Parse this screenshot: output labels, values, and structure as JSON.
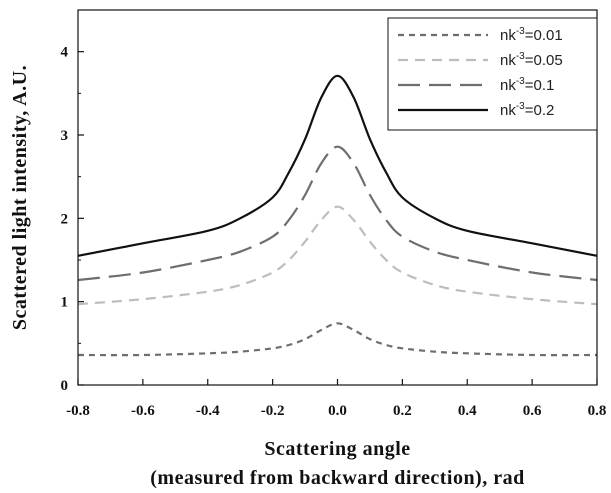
{
  "chart_data": {
    "type": "line",
    "xlabel": "Scattering angle",
    "xlabel_line2": "(measured from backward direction), rad",
    "ylabel": "Scattered light intensity, A.U.",
    "xlim": [
      -0.8,
      0.8
    ],
    "ylim": [
      0,
      4.5
    ],
    "x_ticks": [
      "-0.8",
      "-0.6",
      "-0.4",
      "-0.2",
      "0.0",
      "0.2",
      "0.4",
      "0.6",
      "0.8"
    ],
    "y_ticks": [
      "0",
      "1",
      "2",
      "3",
      "4"
    ],
    "legend_position": "top-right",
    "series": [
      {
        "name": "nk⁻³=0.01",
        "legend_base": "nk",
        "legend_sup": "-3",
        "legend_value": "=0.01",
        "color": "#6e6e6e",
        "dash": "6,5",
        "x": [
          -0.8,
          -0.6,
          -0.4,
          -0.3,
          -0.2,
          -0.15,
          -0.1,
          -0.05,
          0.0,
          0.05,
          0.1,
          0.15,
          0.2,
          0.3,
          0.4,
          0.6,
          0.8
        ],
        "y": [
          0.36,
          0.36,
          0.38,
          0.4,
          0.44,
          0.48,
          0.55,
          0.66,
          0.74,
          0.66,
          0.55,
          0.48,
          0.44,
          0.4,
          0.38,
          0.36,
          0.36
        ]
      },
      {
        "name": "nk⁻³=0.05",
        "legend_base": "nk",
        "legend_sup": "-3",
        "legend_value": "=0.05",
        "color": "#bdbdbd",
        "dash": "10,7",
        "x": [
          -0.8,
          -0.6,
          -0.4,
          -0.3,
          -0.2,
          -0.15,
          -0.1,
          -0.05,
          0.0,
          0.05,
          0.1,
          0.15,
          0.2,
          0.3,
          0.4,
          0.6,
          0.8
        ],
        "y": [
          0.97,
          1.03,
          1.12,
          1.2,
          1.35,
          1.5,
          1.72,
          1.98,
          2.14,
          1.98,
          1.72,
          1.5,
          1.35,
          1.2,
          1.12,
          1.03,
          0.97
        ]
      },
      {
        "name": "nk⁻³=0.1",
        "legend_base": "nk",
        "legend_sup": "-3",
        "legend_value": "=0.1",
        "color": "#6e6e6e",
        "dash": "22,9",
        "x": [
          -0.8,
          -0.6,
          -0.4,
          -0.3,
          -0.2,
          -0.15,
          -0.1,
          -0.05,
          0.0,
          0.05,
          0.1,
          0.15,
          0.2,
          0.3,
          0.4,
          0.6,
          0.8
        ],
        "y": [
          1.26,
          1.35,
          1.5,
          1.6,
          1.78,
          1.98,
          2.28,
          2.66,
          2.86,
          2.66,
          2.28,
          1.98,
          1.78,
          1.6,
          1.5,
          1.35,
          1.26
        ]
      },
      {
        "name": "nk⁻³=0.2",
        "legend_base": "nk",
        "legend_sup": "-3",
        "legend_value": "=0.2",
        "color": "#111111",
        "dash": "",
        "x": [
          -0.8,
          -0.6,
          -0.4,
          -0.3,
          -0.2,
          -0.15,
          -0.1,
          -0.05,
          0.0,
          0.05,
          0.1,
          0.15,
          0.2,
          0.3,
          0.4,
          0.6,
          0.8
        ],
        "y": [
          1.55,
          1.7,
          1.85,
          2.0,
          2.25,
          2.55,
          2.95,
          3.45,
          3.71,
          3.45,
          2.95,
          2.55,
          2.25,
          2.0,
          1.85,
          1.7,
          1.55
        ]
      }
    ]
  }
}
